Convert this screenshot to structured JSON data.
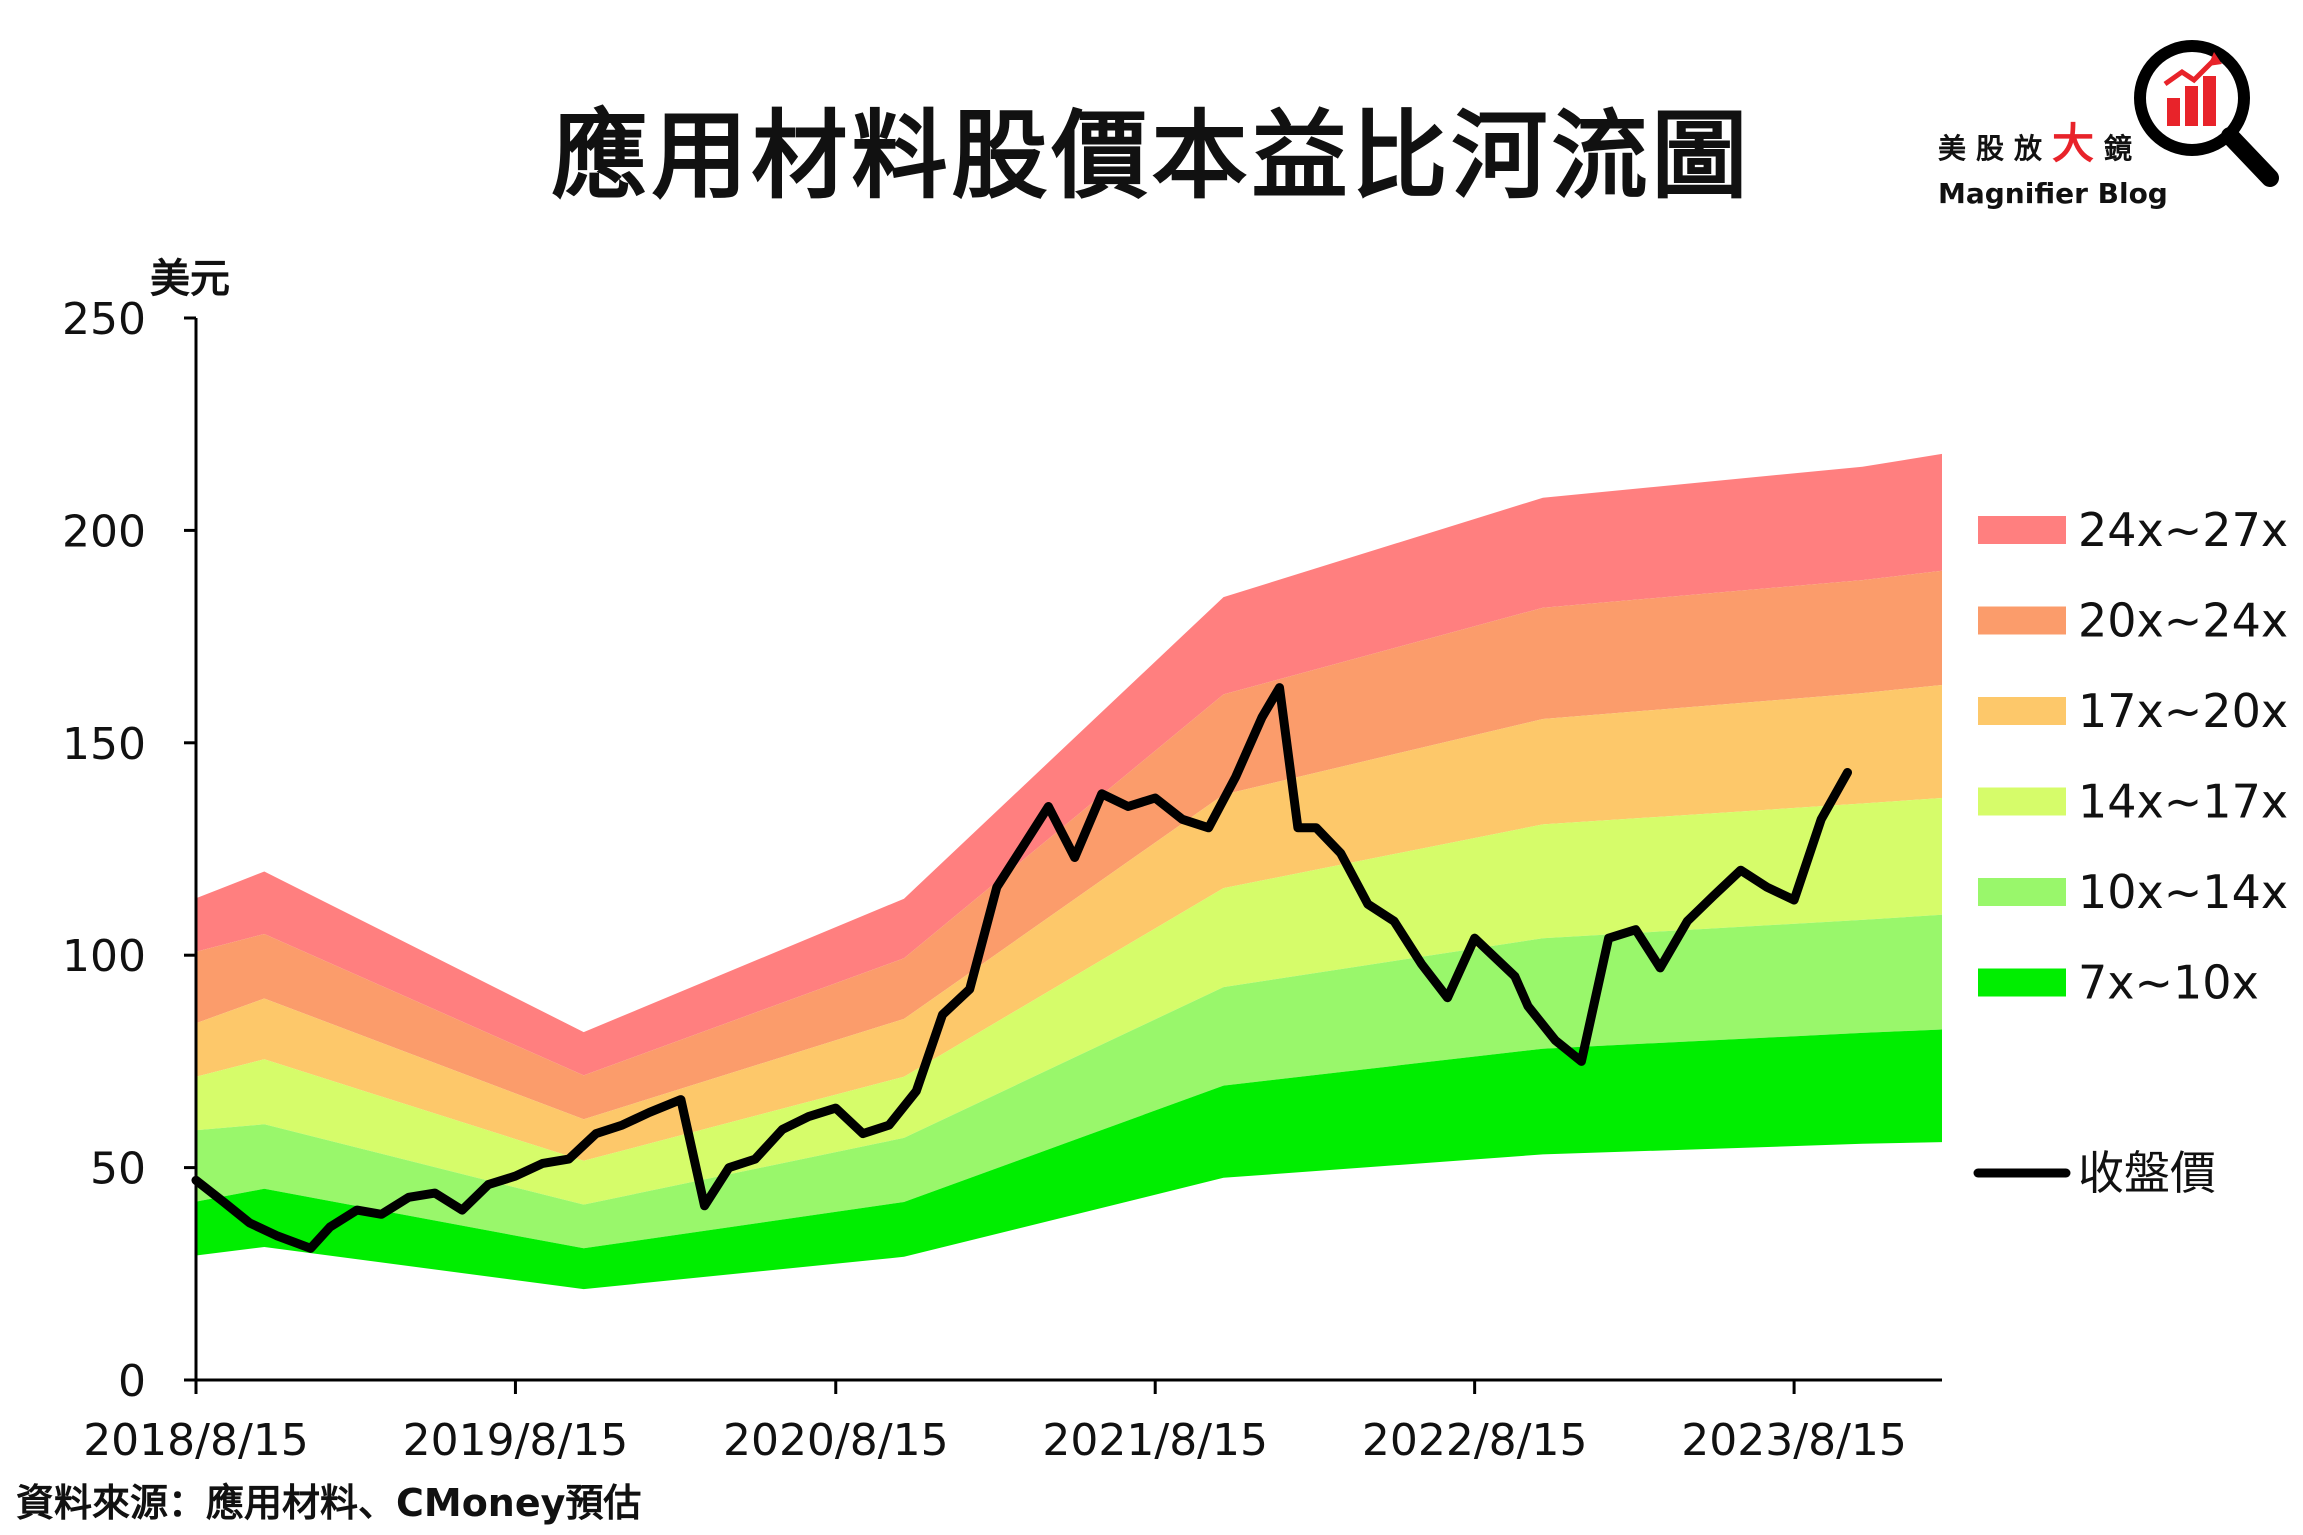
{
  "header": {
    "title": "應用材料股價本益比河流圖",
    "source": "資料來源：應用材料、CMoney預估"
  },
  "logo": {
    "cn_prefix": "美股放",
    "cn_big": "大",
    "cn_suffix": "鏡",
    "en": "Magnifier Blog",
    "icon": "magnifier-bar-chart-icon",
    "accent_color": "#e8232a"
  },
  "chart_data": {
    "type": "area",
    "ylabel": "美元",
    "ylim": [
      0,
      250
    ],
    "yticks": [
      0,
      50,
      100,
      150,
      200,
      250
    ],
    "xlim": [
      "2018-08-15",
      "2024-01-31"
    ],
    "xticks": [
      "2018-08-15",
      "2019-08-15",
      "2020-08-15",
      "2021-08-15",
      "2022-08-15",
      "2023-08-15"
    ],
    "xtick_labels": [
      "2018/8/15",
      "2019/8/15",
      "2020/8/15",
      "2021/8/15",
      "2022/8/15",
      "2023/8/15"
    ],
    "grid": false,
    "legend_position": "right",
    "band_boundaries": {
      "dates": [
        "2018-08-15",
        "2018-11-01",
        "2019-11-01",
        "2020-11-01",
        "2021-11-01",
        "2022-11-01",
        "2023-11-01",
        "2024-01-31"
      ],
      "pe_7": [
        29.3,
        31.3,
        21.4,
        29.0,
        47.6,
        53.1,
        55.6,
        56.0
      ],
      "pe_10": [
        42.0,
        45.0,
        31.0,
        41.9,
        69.3,
        78.0,
        81.7,
        82.5
      ],
      "pe_14": [
        58.8,
        60.2,
        41.3,
        57.0,
        92.5,
        104.0,
        108.3,
        109.5
      ],
      "pe_17": [
        71.4,
        75.5,
        51.6,
        71.4,
        115.8,
        130.8,
        135.7,
        137.0
      ],
      "pe_20": [
        84.0,
        89.8,
        61.4,
        85.0,
        137.8,
        155.6,
        161.7,
        163.6
      ],
      "pe_24": [
        100.8,
        105.0,
        71.7,
        99.3,
        161.4,
        181.8,
        188.3,
        190.5
      ],
      "pe_27": [
        113.4,
        119.7,
        81.9,
        113.3,
        184.3,
        207.7,
        215.0,
        218.0
      ]
    },
    "bands": [
      {
        "name": "24x~27x",
        "lower": "pe_24",
        "upper": "pe_27",
        "color": "#ff7f7f"
      },
      {
        "name": "20x~24x",
        "lower": "pe_20",
        "upper": "pe_24",
        "color": "#fb9c6b"
      },
      {
        "name": "17x~20x",
        "lower": "pe_17",
        "upper": "pe_20",
        "color": "#fdc86a"
      },
      {
        "name": "14x~17x",
        "lower": "pe_14",
        "upper": "pe_17",
        "color": "#d6fc6a"
      },
      {
        "name": "10x~14x",
        "lower": "pe_10",
        "upper": "pe_14",
        "color": "#99f76b"
      },
      {
        "name": "7x~10x",
        "lower": "pe_7",
        "upper": "pe_10",
        "color": "#00ee00"
      }
    ],
    "series": [
      {
        "name": "收盤價",
        "color": "#000000",
        "x": [
          "2018-08-15",
          "2018-09-15",
          "2018-10-15",
          "2018-11-15",
          "2018-12-24",
          "2019-01-15",
          "2019-02-15",
          "2019-03-15",
          "2019-04-15",
          "2019-05-15",
          "2019-06-15",
          "2019-07-15",
          "2019-08-15",
          "2019-09-15",
          "2019-10-15",
          "2019-11-15",
          "2019-12-15",
          "2020-01-15",
          "2020-02-20",
          "2020-03-18",
          "2020-04-15",
          "2020-05-15",
          "2020-06-15",
          "2020-07-15",
          "2020-08-15",
          "2020-09-15",
          "2020-10-15",
          "2020-11-15",
          "2020-12-15",
          "2021-01-15",
          "2021-02-15",
          "2021-03-15",
          "2021-04-15",
          "2021-05-15",
          "2021-06-15",
          "2021-07-15",
          "2021-08-15",
          "2021-09-15",
          "2021-10-15",
          "2021-11-15",
          "2021-12-15",
          "2022-01-04",
          "2022-01-25",
          "2022-02-15",
          "2022-03-15",
          "2022-04-15",
          "2022-05-15",
          "2022-06-15",
          "2022-07-15",
          "2022-08-15",
          "2022-09-30",
          "2022-10-15",
          "2022-11-15",
          "2022-12-15",
          "2023-01-15",
          "2023-02-15",
          "2023-03-15",
          "2023-04-15",
          "2023-05-15",
          "2023-06-15",
          "2023-07-15",
          "2023-08-15",
          "2023-09-15",
          "2023-10-15"
        ],
        "y": [
          47,
          42,
          37,
          34,
          31,
          36,
          40,
          39,
          43,
          44,
          40,
          46,
          48,
          51,
          52,
          58,
          60,
          63,
          66,
          41,
          50,
          52,
          59,
          62,
          64,
          58,
          60,
          68,
          86,
          92,
          116,
          125,
          135,
          123,
          138,
          135,
          137,
          132,
          130,
          142,
          156,
          163,
          130,
          130,
          124,
          112,
          108,
          98,
          90,
          104,
          95,
          88,
          80,
          75,
          104,
          106,
          97,
          108,
          114,
          120,
          116,
          113,
          132,
          143
        ]
      }
    ]
  },
  "axis_labels": {
    "ylabel": "美元",
    "yticks": [
      "0",
      "50",
      "100",
      "150",
      "200",
      "250"
    ],
    "xticks": [
      "2018/8/15",
      "2019/8/15",
      "2020/8/15",
      "2021/8/15",
      "2022/8/15",
      "2023/8/15"
    ]
  },
  "legend": [
    {
      "label": "24x~27x",
      "color": "#ff7f7f"
    },
    {
      "label": "20x~24x",
      "color": "#fb9c6b"
    },
    {
      "label": "17x~20x",
      "color": "#fdc86a"
    },
    {
      "label": "14x~17x",
      "color": "#d6fc6a"
    },
    {
      "label": "10x~14x",
      "color": "#99f76b"
    },
    {
      "label": "7x~10x",
      "color": "#00ee00"
    },
    {
      "label": "收盤價",
      "color": "#000000"
    }
  ]
}
